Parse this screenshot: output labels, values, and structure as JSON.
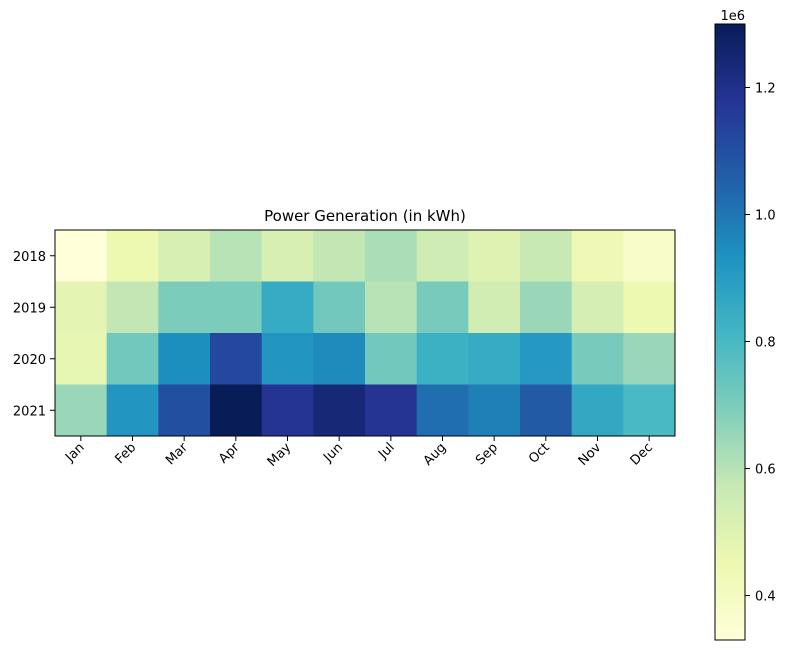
{
  "chart_data": {
    "type": "heatmap",
    "title": "Power Generation (in kWh)",
    "xlabel": "",
    "ylabel": "",
    "x_categories": [
      "Jan",
      "Feb",
      "Mar",
      "Apr",
      "May",
      "Jun",
      "Jul",
      "Aug",
      "Sep",
      "Oct",
      "Nov",
      "Dec"
    ],
    "y_categories": [
      "2018",
      "2019",
      "2020",
      "2021"
    ],
    "values": [
      [
        330000,
        450000,
        520000,
        600000,
        520000,
        580000,
        620000,
        550000,
        500000,
        570000,
        440000,
        380000
      ],
      [
        480000,
        580000,
        700000,
        700000,
        850000,
        720000,
        600000,
        710000,
        540000,
        650000,
        530000,
        450000
      ],
      [
        470000,
        720000,
        940000,
        1120000,
        920000,
        950000,
        720000,
        830000,
        850000,
        910000,
        710000,
        650000
      ],
      [
        650000,
        920000,
        1100000,
        1300000,
        1180000,
        1240000,
        1180000,
        1020000,
        980000,
        1070000,
        860000,
        800000
      ]
    ],
    "colormap": "YlGnBu",
    "colorbar": {
      "min": 330000,
      "max": 1300000,
      "ticks": [
        400000,
        600000,
        800000,
        1000000,
        1200000
      ],
      "tick_labels": [
        "0.4",
        "0.6",
        "0.8",
        "1.0",
        "1.2"
      ],
      "offset_label": "1e6"
    },
    "grid": false
  }
}
